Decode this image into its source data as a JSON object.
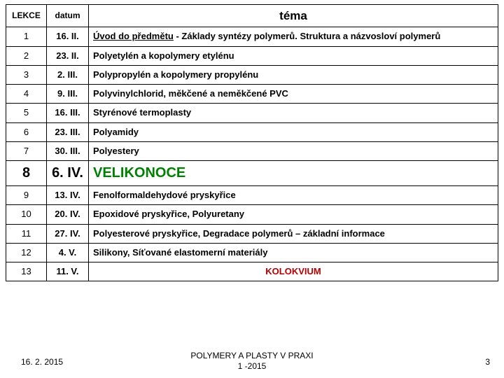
{
  "header": {
    "col1": "LEKCE",
    "col2": "datum",
    "col3": "téma"
  },
  "rows": [
    {
      "lekce": "1",
      "datum": "16. II.",
      "tema_pre": "Úvod do předmětu",
      "tema_post": " - Základy syntézy polymerů. Struktura a názvosloví polymerů",
      "big": false,
      "indent": true,
      "color": "",
      "center": false
    },
    {
      "lekce": "2",
      "datum": "23. II.",
      "tema": "Polyetylén a kopolymery etylénu",
      "big": false,
      "color": "",
      "center": false
    },
    {
      "lekce": "3",
      "datum": "2. III.",
      "tema": "Polypropylén a kopolymery propylénu",
      "big": false,
      "color": "",
      "center": false
    },
    {
      "lekce": "4",
      "datum": "9. III.",
      "tema": "Polyvinylchlorid, měkčené a neměkčené PVC",
      "big": false,
      "color": "",
      "center": false
    },
    {
      "lekce": "5",
      "datum": "16. III.",
      "tema": "Styrénové termoplasty",
      "big": false,
      "color": "",
      "center": false
    },
    {
      "lekce": "6",
      "datum": "23. III.",
      "tema": "Polyamidy",
      "big": false,
      "color": "",
      "center": false
    },
    {
      "lekce": "7",
      "datum": "30. III.",
      "tema": "Polyestery",
      "big": false,
      "color": "",
      "center": false
    },
    {
      "lekce": "8",
      "datum": "6. IV.",
      "tema": "VELIKONOCE",
      "big": true,
      "color": "green",
      "center": false
    },
    {
      "lekce": "9",
      "datum": "13. IV.",
      "tema": "Fenolformaldehydové pryskyřice",
      "big": false,
      "color": "",
      "center": false
    },
    {
      "lekce": "10",
      "datum": "20. IV.",
      "tema": "Epoxidové pryskyřice, Polyuretany",
      "big": false,
      "color": "",
      "center": false
    },
    {
      "lekce": "11",
      "datum": "27. IV.",
      "tema": "Polyesterové pryskyřice, Degradace polymerů – základní informace",
      "big": false,
      "color": "",
      "center": false
    },
    {
      "lekce": "12",
      "datum": "4. V.",
      "tema": "Silikony, Síťované elastomerní materiály",
      "big": false,
      "color": "",
      "center": false
    },
    {
      "lekce": "13",
      "datum": "11. V.",
      "tema": "KOLOKVIUM",
      "big": false,
      "color": "red",
      "center": true
    }
  ],
  "footer": {
    "date": "16. 2. 2015",
    "title": "POLYMERY A PLASTY V PRAXI\n1 -2015",
    "page": "3"
  },
  "colors": {
    "border": "#000000",
    "green": "#008000",
    "red": "#b30000",
    "bg": "#ffffff"
  }
}
